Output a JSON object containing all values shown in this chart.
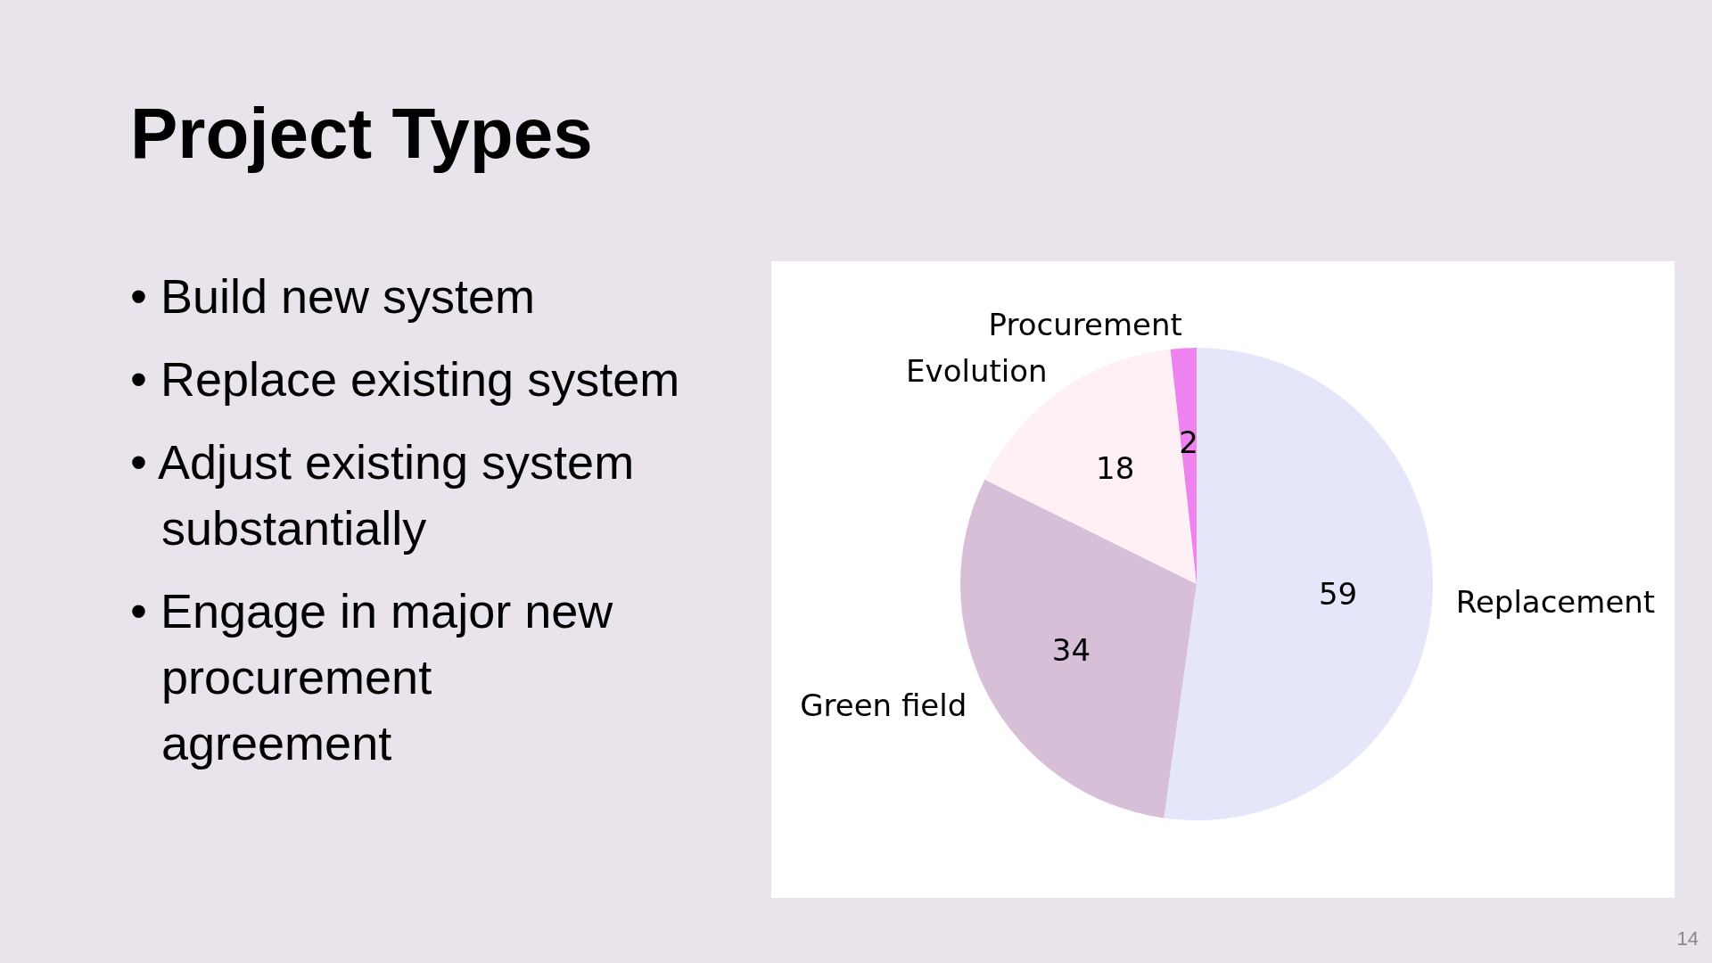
{
  "chart_data": {
    "type": "pie",
    "title": "Project Types",
    "categories": [
      "Replacement",
      "Green field",
      "Evolution",
      "Procurement"
    ],
    "values": [
      59,
      34,
      18,
      2
    ],
    "colors": [
      "#e6e6fa",
      "#d8bfd8",
      "#fff0f5",
      "#ee82ee"
    ],
    "data_labels": true,
    "annotations": [
      "• Build new system",
      "• Replace existing system",
      "• Adjust existing system\nsubstantially",
      "• Engage in major new\nprocurement\nagreement",
      "14"
    ]
  }
}
